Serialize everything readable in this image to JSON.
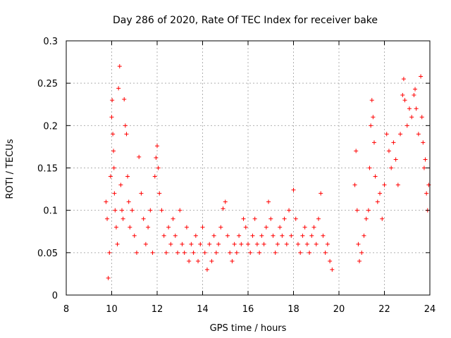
{
  "chart_data": {
    "type": "scatter",
    "title": "Day 286 of 2020, Rate Of TEC Index for receiver bake",
    "xlabel": "GPS time / hours",
    "ylabel": "ROTI / TECUs",
    "xlim": [
      8,
      24
    ],
    "ylim": [
      0,
      0.3
    ],
    "x_ticks": [
      "8",
      "10",
      "12",
      "14",
      "16",
      "18",
      "20",
      "22",
      "24"
    ],
    "y_ticks": [
      "0",
      "0.05",
      "0.1",
      "0.15",
      "0.2",
      "0.25",
      "0.3"
    ],
    "grid": true,
    "marker": "+",
    "color": "#ff0000",
    "series": [
      {
        "name": "ROTI",
        "points": [
          [
            9.75,
            0.11
          ],
          [
            9.8,
            0.09
          ],
          [
            9.85,
            0.02
          ],
          [
            9.9,
            0.05
          ],
          [
            9.95,
            0.14
          ],
          [
            10.0,
            0.21
          ],
          [
            10.02,
            0.23
          ],
          [
            10.05,
            0.19
          ],
          [
            10.08,
            0.17
          ],
          [
            10.1,
            0.15
          ],
          [
            10.12,
            0.12
          ],
          [
            10.15,
            0.1
          ],
          [
            10.2,
            0.08
          ],
          [
            10.25,
            0.06
          ],
          [
            10.3,
            0.244
          ],
          [
            10.35,
            0.27
          ],
          [
            10.4,
            0.13
          ],
          [
            10.45,
            0.1
          ],
          [
            10.5,
            0.09
          ],
          [
            10.55,
            0.231
          ],
          [
            10.6,
            0.2
          ],
          [
            10.65,
            0.19
          ],
          [
            10.7,
            0.14
          ],
          [
            10.75,
            0.11
          ],
          [
            10.8,
            0.08
          ],
          [
            10.9,
            0.1
          ],
          [
            11.0,
            0.07
          ],
          [
            11.1,
            0.05
          ],
          [
            11.2,
            0.163
          ],
          [
            11.3,
            0.12
          ],
          [
            11.4,
            0.09
          ],
          [
            11.5,
            0.06
          ],
          [
            11.6,
            0.08
          ],
          [
            11.7,
            0.1
          ],
          [
            11.8,
            0.05
          ],
          [
            11.9,
            0.14
          ],
          [
            11.95,
            0.162
          ],
          [
            12.0,
            0.176
          ],
          [
            12.05,
            0.15
          ],
          [
            12.1,
            0.12
          ],
          [
            12.2,
            0.1
          ],
          [
            12.3,
            0.07
          ],
          [
            12.4,
            0.05
          ],
          [
            12.5,
            0.08
          ],
          [
            12.6,
            0.06
          ],
          [
            12.7,
            0.09
          ],
          [
            12.8,
            0.07
          ],
          [
            12.9,
            0.05
          ],
          [
            13.0,
            0.1
          ],
          [
            13.1,
            0.06
          ],
          [
            13.2,
            0.05
          ],
          [
            13.3,
            0.08
          ],
          [
            13.4,
            0.04
          ],
          [
            13.5,
            0.06
          ],
          [
            13.6,
            0.05
          ],
          [
            13.7,
            0.07
          ],
          [
            13.8,
            0.04
          ],
          [
            13.9,
            0.06
          ],
          [
            14.0,
            0.08
          ],
          [
            14.1,
            0.05
          ],
          [
            14.2,
            0.03
          ],
          [
            14.3,
            0.06
          ],
          [
            14.4,
            0.04
          ],
          [
            14.5,
            0.07
          ],
          [
            14.6,
            0.05
          ],
          [
            14.7,
            0.06
          ],
          [
            14.8,
            0.08
          ],
          [
            14.9,
            0.102
          ],
          [
            15.0,
            0.11
          ],
          [
            15.1,
            0.07
          ],
          [
            15.2,
            0.05
          ],
          [
            15.3,
            0.04
          ],
          [
            15.4,
            0.06
          ],
          [
            15.5,
            0.05
          ],
          [
            15.6,
            0.07
          ],
          [
            15.7,
            0.06
          ],
          [
            15.8,
            0.09
          ],
          [
            15.9,
            0.08
          ],
          [
            16.0,
            0.06
          ],
          [
            16.1,
            0.05
          ],
          [
            16.2,
            0.07
          ],
          [
            16.3,
            0.09
          ],
          [
            16.4,
            0.06
          ],
          [
            16.5,
            0.05
          ],
          [
            16.6,
            0.07
          ],
          [
            16.7,
            0.06
          ],
          [
            16.8,
            0.08
          ],
          [
            16.9,
            0.11
          ],
          [
            17.0,
            0.09
          ],
          [
            17.1,
            0.07
          ],
          [
            17.2,
            0.05
          ],
          [
            17.3,
            0.06
          ],
          [
            17.4,
            0.08
          ],
          [
            17.5,
            0.07
          ],
          [
            17.6,
            0.09
          ],
          [
            17.7,
            0.06
          ],
          [
            17.8,
            0.1
          ],
          [
            17.9,
            0.07
          ],
          [
            18.0,
            0.124
          ],
          [
            18.1,
            0.09
          ],
          [
            18.2,
            0.06
          ],
          [
            18.3,
            0.05
          ],
          [
            18.4,
            0.07
          ],
          [
            18.5,
            0.08
          ],
          [
            18.6,
            0.06
          ],
          [
            18.7,
            0.05
          ],
          [
            18.8,
            0.07
          ],
          [
            18.9,
            0.08
          ],
          [
            19.0,
            0.06
          ],
          [
            19.1,
            0.09
          ],
          [
            19.2,
            0.12
          ],
          [
            19.3,
            0.07
          ],
          [
            19.4,
            0.05
          ],
          [
            19.5,
            0.06
          ],
          [
            19.6,
            0.04
          ],
          [
            19.7,
            0.03
          ],
          [
            20.7,
            0.13
          ],
          [
            20.75,
            0.17
          ],
          [
            20.8,
            0.1
          ],
          [
            20.85,
            0.06
          ],
          [
            20.9,
            0.04
          ],
          [
            21.0,
            0.05
          ],
          [
            21.1,
            0.07
          ],
          [
            21.2,
            0.09
          ],
          [
            21.3,
            0.1
          ],
          [
            21.35,
            0.15
          ],
          [
            21.4,
            0.2
          ],
          [
            21.45,
            0.23
          ],
          [
            21.5,
            0.21
          ],
          [
            21.55,
            0.18
          ],
          [
            21.6,
            0.14
          ],
          [
            21.7,
            0.11
          ],
          [
            21.8,
            0.12
          ],
          [
            21.9,
            0.09
          ],
          [
            22.0,
            0.13
          ],
          [
            22.1,
            0.19
          ],
          [
            22.2,
            0.17
          ],
          [
            22.3,
            0.15
          ],
          [
            22.4,
            0.18
          ],
          [
            22.5,
            0.16
          ],
          [
            22.6,
            0.13
          ],
          [
            22.7,
            0.19
          ],
          [
            22.8,
            0.236
          ],
          [
            22.85,
            0.255
          ],
          [
            22.9,
            0.23
          ],
          [
            23.0,
            0.2
          ],
          [
            23.1,
            0.22
          ],
          [
            23.2,
            0.21
          ],
          [
            23.3,
            0.236
          ],
          [
            23.35,
            0.243
          ],
          [
            23.4,
            0.22
          ],
          [
            23.5,
            0.19
          ],
          [
            23.6,
            0.258
          ],
          [
            23.65,
            0.21
          ],
          [
            23.7,
            0.18
          ],
          [
            23.75,
            0.15
          ],
          [
            23.8,
            0.16
          ],
          [
            23.85,
            0.12
          ],
          [
            23.9,
            0.1
          ],
          [
            23.95,
            0.13
          ]
        ]
      }
    ]
  }
}
